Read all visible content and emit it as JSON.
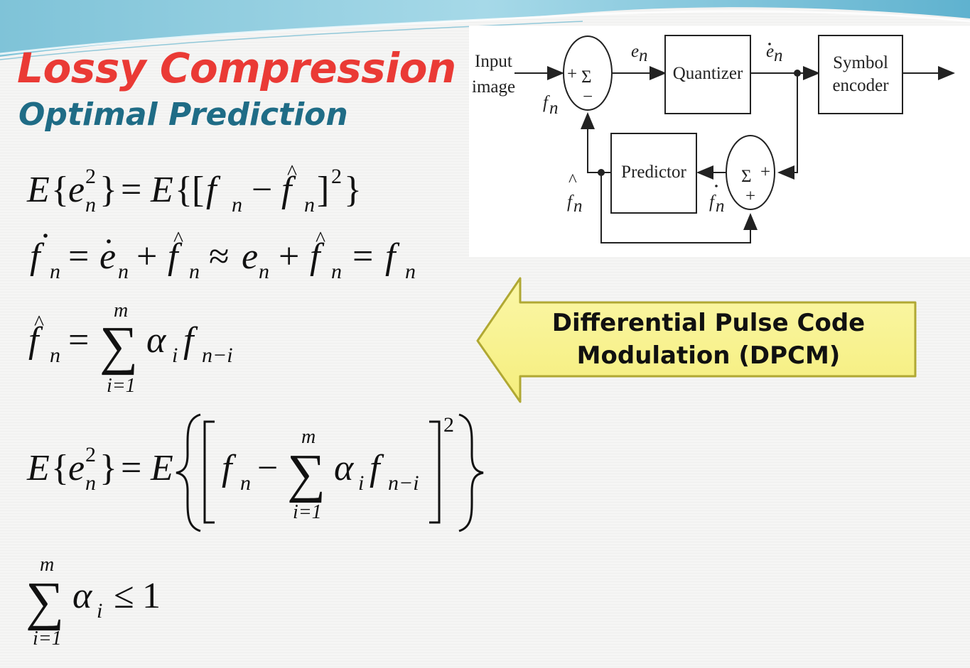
{
  "slide": {
    "title": "Lossy Compression",
    "subtitle": "Optimal Prediction",
    "colors": {
      "title": "#ea3a35",
      "subtitle": "#1f6c86",
      "callout_fill": "#fbf59a",
      "callout_stroke": "#b0a833"
    }
  },
  "diagram": {
    "input_label_line1": "Input",
    "input_label_line2": "image",
    "quantizer": "Quantizer",
    "symbol_encoder_line1": "Symbol",
    "symbol_encoder_line2": "encoder",
    "predictor": "Predictor",
    "sigma": "Σ",
    "plus": "+",
    "minus": "−",
    "f": "f",
    "e": "e",
    "sub_n": "n"
  },
  "equations": {
    "E": "E",
    "e": "e",
    "f": "f",
    "n": "n",
    "i": "i",
    "m": "m",
    "two": "2",
    "alpha": "α",
    "sigma": "∑",
    "eq": "=",
    "plus": "+",
    "minus": "−",
    "approx": "≈",
    "leq": "≤",
    "one": "1",
    "i_eq_1": "i=1",
    "n_minus_i": "n−i",
    "lbrace": "{",
    "rbrace": "}",
    "lbrack": "[",
    "rbrack": "]",
    "hat": "^",
    "dot": "˙"
  },
  "callout": {
    "line1": "Differential Pulse Code",
    "line2": "Modulation (DPCM)"
  }
}
